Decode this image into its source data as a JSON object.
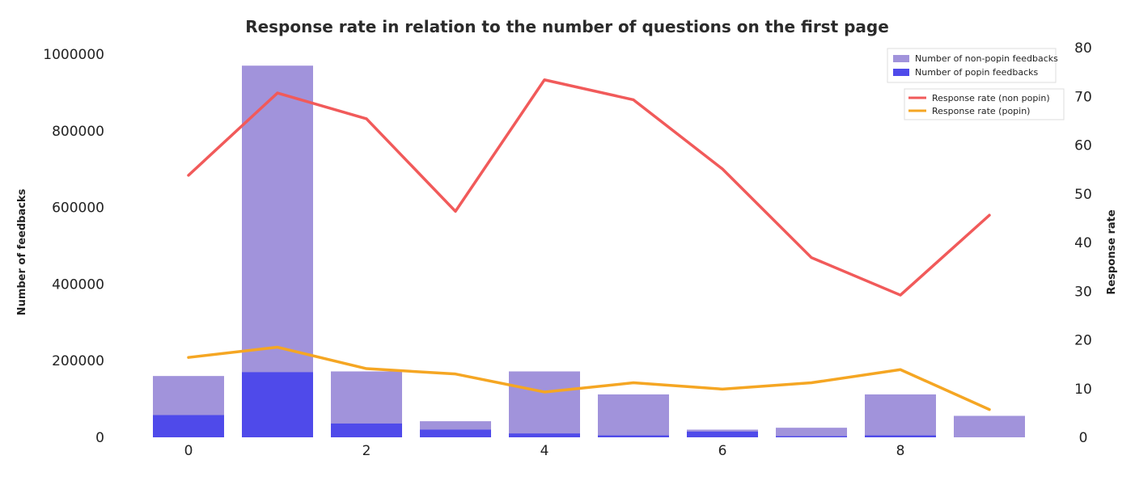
{
  "chart_data": {
    "type": "bar",
    "title": "Response rate in relation to the number of questions on the first page",
    "x": [
      0,
      1,
      2,
      3,
      4,
      5,
      6,
      7,
      8,
      9
    ],
    "x_ticks": [
      0,
      2,
      4,
      6,
      8
    ],
    "ylabel_left": "Number of feedbacks",
    "ylabel_right": "Response rate",
    "ylim_left": [
      0,
      1000000
    ],
    "ylim_right": [
      0,
      80
    ],
    "y_ticks_left": [
      0,
      200000,
      400000,
      600000,
      800000,
      1000000
    ],
    "y_ticks_right": [
      0,
      10,
      20,
      30,
      40,
      50,
      60,
      70,
      80
    ],
    "grid": false,
    "bar_series": [
      {
        "name": "Number of non-popin feedbacks",
        "color": "#a193db",
        "values": [
          160000,
          970000,
          172000,
          42000,
          172000,
          112000,
          20000,
          25000,
          112000,
          56000
        ]
      },
      {
        "name": "Number of popin feedbacks",
        "color": "#4f4aea",
        "values": [
          58000,
          170000,
          36000,
          20000,
          10000,
          5000,
          15000,
          3000,
          5000,
          0
        ]
      }
    ],
    "line_series": [
      {
        "name": "Response rate (non popin)",
        "color": "#f15a5a",
        "values": [
          53.8,
          70.7,
          65.4,
          46.4,
          73.4,
          69.3,
          55.1,
          36.9,
          29.2,
          45.6
        ]
      },
      {
        "name": "Response rate (popin)",
        "color": "#f5a623",
        "values": [
          16.4,
          18.5,
          14.1,
          13.0,
          9.3,
          11.2,
          9.9,
          11.2,
          13.9,
          5.7
        ]
      }
    ],
    "legend_bars_position": "upper right",
    "legend_lines_position": "upper right"
  }
}
